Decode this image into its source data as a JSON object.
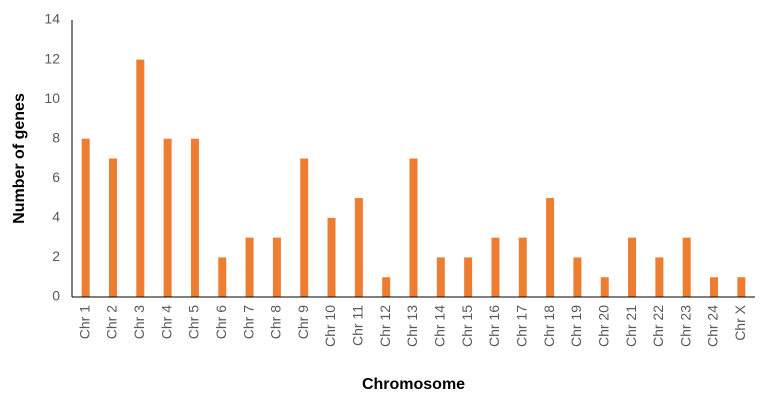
{
  "chart_data": {
    "type": "bar",
    "xlabel": "Chromosome",
    "ylabel": "Number of genes",
    "ylim": [
      0,
      14
    ],
    "yticks": [
      0,
      2,
      4,
      6,
      8,
      10,
      12,
      14
    ],
    "grid": false,
    "legend": "none",
    "bar_color": "#ED7D31",
    "categories": [
      "Chr 1",
      "Chr 2",
      "Chr 3",
      "Chr 4",
      "Chr 5",
      "Chr 6",
      "Chr 7",
      "Chr 8",
      "Chr 9",
      "Chr 10",
      "Chr 11",
      "Chr 12",
      "Chr 13",
      "Chr 14",
      "Chr 15",
      "Chr 16",
      "Chr 17",
      "Chr 18",
      "Chr 19",
      "Chr 20",
      "Chr 21",
      "Chr 22",
      "Chr 23",
      "Chr 24",
      "Chr X"
    ],
    "values": [
      8,
      7,
      12,
      8,
      8,
      2,
      3,
      3,
      7,
      4,
      5,
      1,
      7,
      2,
      2,
      3,
      3,
      5,
      2,
      1,
      3,
      2,
      3,
      1,
      1
    ]
  }
}
